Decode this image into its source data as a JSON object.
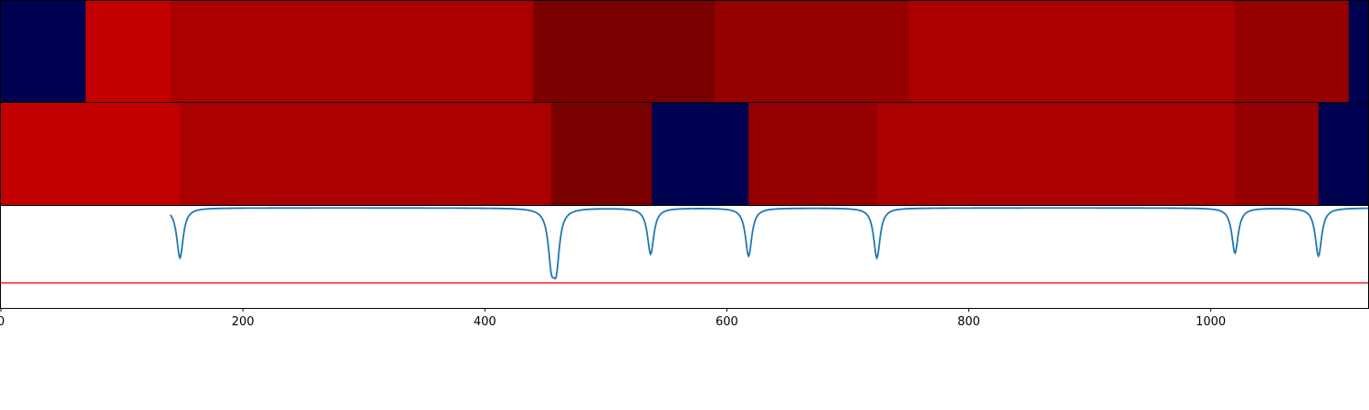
{
  "chart_data": [
    {
      "type": "heatmap",
      "xlim": [
        0,
        1130
      ],
      "segments": [
        {
          "start": 0,
          "end": 70,
          "value": 0
        },
        {
          "start": 70,
          "end": 140,
          "value": 6
        },
        {
          "start": 140,
          "end": 440,
          "value": 5
        },
        {
          "start": 440,
          "end": 590,
          "value": 3
        },
        {
          "start": 590,
          "end": 750,
          "value": 4
        },
        {
          "start": 750,
          "end": 1020,
          "value": 5
        },
        {
          "start": 1020,
          "end": 1114,
          "value": 4
        },
        {
          "start": 1114,
          "end": 1130,
          "value": 0
        }
      ]
    },
    {
      "type": "heatmap",
      "xlim": [
        0,
        1130
      ],
      "segments": [
        {
          "start": 0,
          "end": 148,
          "value": 6
        },
        {
          "start": 148,
          "end": 455,
          "value": 5
        },
        {
          "start": 455,
          "end": 538,
          "value": 3
        },
        {
          "start": 538,
          "end": 618,
          "value": 0
        },
        {
          "start": 618,
          "end": 724,
          "value": 4
        },
        {
          "start": 724,
          "end": 1020,
          "value": 5
        },
        {
          "start": 1020,
          "end": 1089,
          "value": 4
        },
        {
          "start": 1089,
          "end": 1130,
          "value": 0
        }
      ]
    },
    {
      "type": "line",
      "xlim": [
        0,
        1130
      ],
      "ylim": [
        -1.0,
        0.02
      ],
      "baseline": -0.75,
      "xticks": [
        0,
        200,
        400,
        600,
        800,
        1000
      ],
      "dips": [
        {
          "x": 148,
          "depth": -0.5
        },
        {
          "x": 455,
          "depth": -0.47
        },
        {
          "x": 459,
          "depth": -0.5
        },
        {
          "x": 537,
          "depth": -0.46
        },
        {
          "x": 618,
          "depth": -0.48
        },
        {
          "x": 724,
          "depth": -0.5
        },
        {
          "x": 1020,
          "depth": -0.45
        },
        {
          "x": 1089,
          "depth": -0.48
        }
      ],
      "colors": {
        "line": "#1f77b4",
        "baseline": "#e31a1c"
      }
    }
  ],
  "colors": {
    "palette": [
      "#000050",
      "#2a0000",
      "#500000",
      "#7a0000",
      "#960000",
      "#aa0000",
      "#c20000"
    ]
  }
}
